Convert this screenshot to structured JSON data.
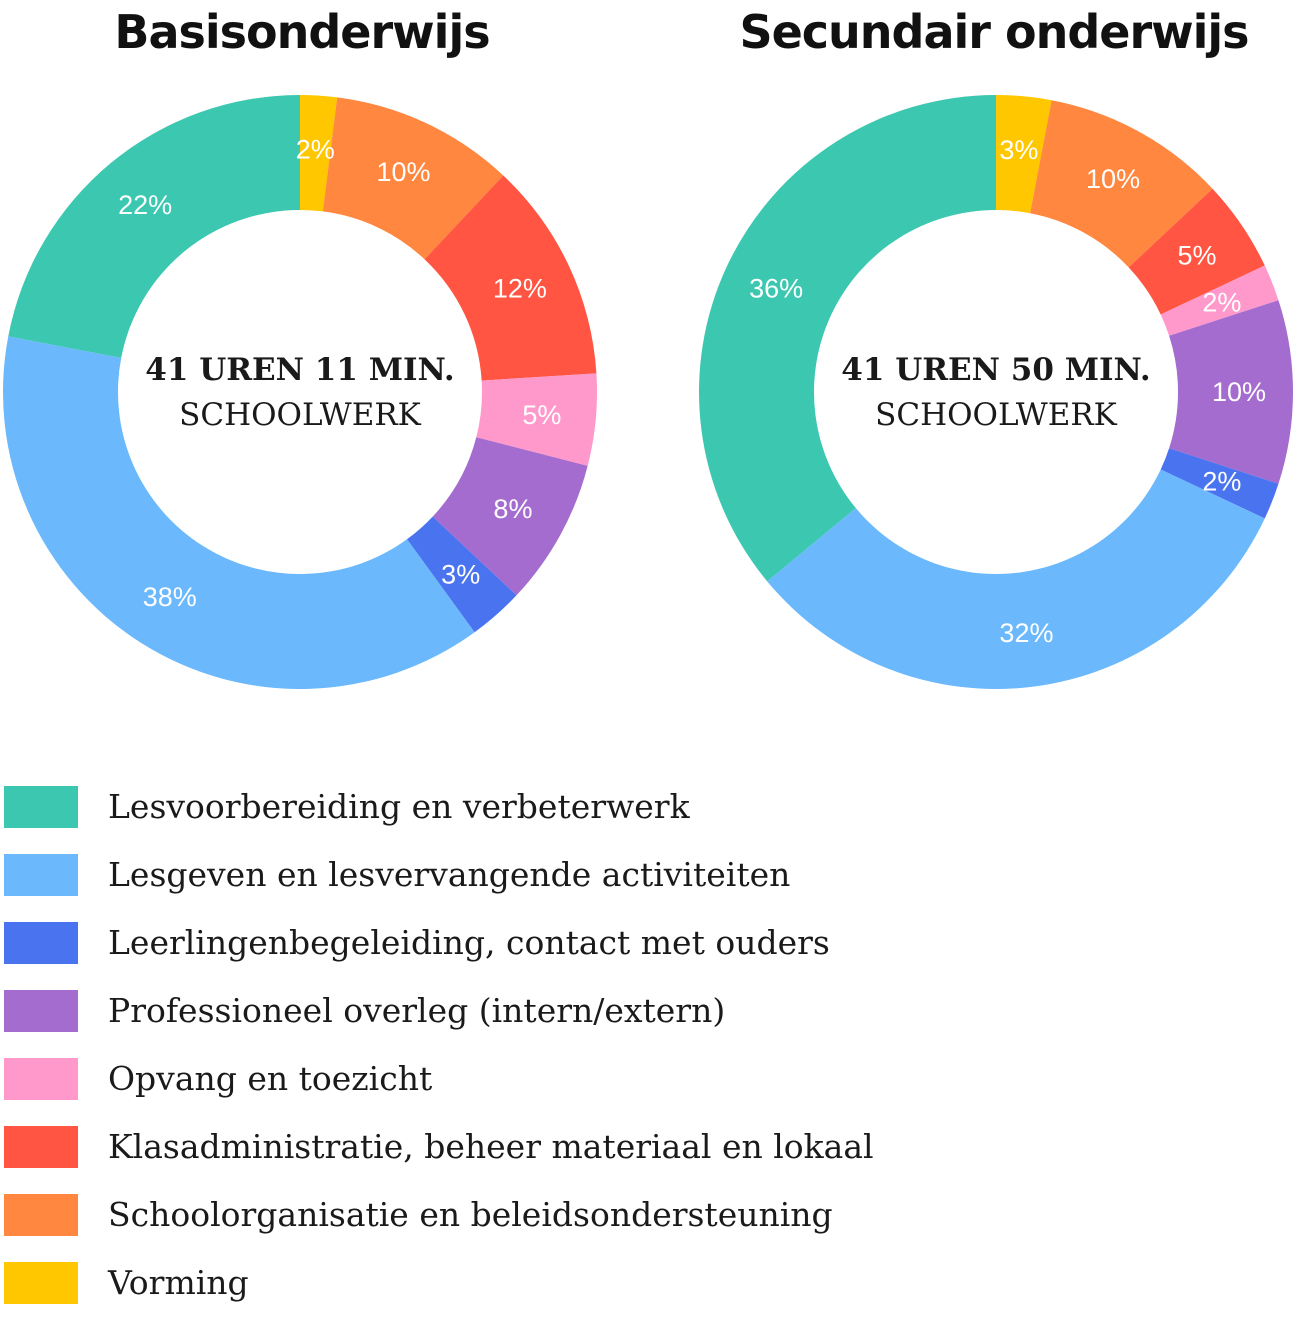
{
  "chart_data": [
    {
      "type": "donut",
      "title": "Basisonderwijs",
      "center_total": "41 UREN 11 MIN.",
      "center_label": "SCHOOLWERK",
      "categories": [
        "Vorming",
        "Schoolorganisatie en beleidsondersteuning",
        "Klasadministratie, beheer materiaal en lokaal",
        "Opvang en toezicht",
        "Professioneel overleg (intern/extern)",
        "Leerlingenbegeleiding, contact met ouders",
        "Lesgeven en lesvervangende activiteiten",
        "Lesvoorbereiding en verbeterwerk"
      ],
      "values": [
        2,
        10,
        12,
        5,
        8,
        3,
        38,
        22
      ],
      "labels": [
        "2%",
        "10%",
        "12%",
        "5%",
        "8%",
        "3%",
        "38%",
        "22%"
      ]
    },
    {
      "type": "donut",
      "title": "Secundair onderwijs",
      "center_total": "41 UREN 50 MIN.",
      "center_label": "SCHOOLWERK",
      "categories": [
        "Vorming",
        "Schoolorganisatie en beleidsondersteuning",
        "Klasadministratie, beheer materiaal en lokaal",
        "Opvang en toezicht",
        "Professioneel overleg (intern/extern)",
        "Leerlingenbegeleiding, contact met ouders",
        "Lesgeven en lesvervangende activiteiten",
        "Lesvoorbereiding en verbeterwerk"
      ],
      "values": [
        3,
        10,
        5,
        2,
        10,
        2,
        32,
        36
      ],
      "labels": [
        "3%",
        "10%",
        "5%",
        "2%",
        "10%",
        "2%",
        "32%",
        "36%"
      ]
    }
  ],
  "legend": [
    {
      "label": "Lesvoorbereiding en verbeterwerk",
      "color": "#3cc8b0"
    },
    {
      "label": "Lesgeven en lesvervangende activiteiten",
      "color": "#6bb9fc"
    },
    {
      "label": "Leerlingenbegeleiding, contact met ouders",
      "color": "#4a73f0"
    },
    {
      "label": "Professioneel overleg (intern/extern)",
      "color": "#a46ccf"
    },
    {
      "label": "Opvang en toezicht",
      "color": "#ff99cc"
    },
    {
      "label": "Klasadministratie, beheer materiaal en lokaal",
      "color": "#ff5542"
    },
    {
      "label": "Schoolorganisatie en beleidsondersteuning",
      "color": "#ff873f"
    },
    {
      "label": "Vorming",
      "color": "#ffc700"
    }
  ],
  "category_colors": {
    "Vorming": "#ffc700",
    "Schoolorganisatie en beleidsondersteuning": "#ff873f",
    "Klasadministratie, beheer materiaal en lokaal": "#ff5542",
    "Opvang en toezicht": "#ff99cc",
    "Professioneel overleg (intern/extern)": "#a46ccf",
    "Leerlingenbegeleiding, contact met ouders": "#4a73f0",
    "Lesgeven en lesvervangende activiteiten": "#6bb9fc",
    "Lesvoorbereiding en verbeterwerk": "#3cc8b0"
  }
}
